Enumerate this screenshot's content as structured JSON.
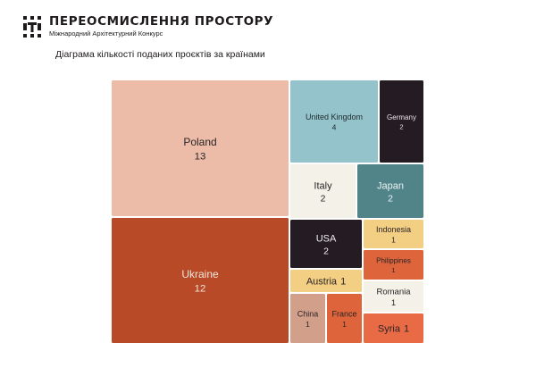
{
  "header": {
    "title": "ПЕРЕОСМИСЛЕННЯ ПРОСТОРУ",
    "subtitle": "Міжнародний Архітектурний Конкурс"
  },
  "chart_data": {
    "type": "treemap",
    "title": "Діаграма кількості поданих проєктів за країнами",
    "items": [
      {
        "name": "Poland",
        "value": 13,
        "color": "#ecbca9",
        "label_color": "#2a2426"
      },
      {
        "name": "Ukraine",
        "value": 12,
        "color": "#b84a27",
        "label_color": "#f3e6dc"
      },
      {
        "name": "United Kingdom",
        "value": 4,
        "color": "#94c3cc",
        "label_color": "#1e2a2e"
      },
      {
        "name": "Germany",
        "value": 2,
        "color": "#241c22",
        "label_color": "#e9e4e4"
      },
      {
        "name": "Italy",
        "value": 2,
        "color": "#f3f1e8",
        "label_color": "#2a2426"
      },
      {
        "name": "Japan",
        "value": 2,
        "color": "#508489",
        "label_color": "#eef4f4"
      },
      {
        "name": "USA",
        "value": 2,
        "color": "#241c22",
        "label_color": "#f2f0f0"
      },
      {
        "name": "Indonesia",
        "value": 1,
        "color": "#f3cf83",
        "label_color": "#2a2426"
      },
      {
        "name": "Philippines",
        "value": 1,
        "color": "#dd643b",
        "label_color": "#2a2426"
      },
      {
        "name": "Austria",
        "value": 1,
        "color": "#f3cf83",
        "label_color": "#2a2426"
      },
      {
        "name": "Romania",
        "value": 1,
        "color": "#f3f1e8",
        "label_color": "#2a2426"
      },
      {
        "name": "China",
        "value": 1,
        "color": "#d2a08a",
        "label_color": "#2a2426"
      },
      {
        "name": "France",
        "value": 1,
        "color": "#dd643b",
        "label_color": "#2a2426"
      },
      {
        "name": "Syria",
        "value": 1,
        "color": "#e96b45",
        "label_color": "#2a2426"
      }
    ]
  }
}
